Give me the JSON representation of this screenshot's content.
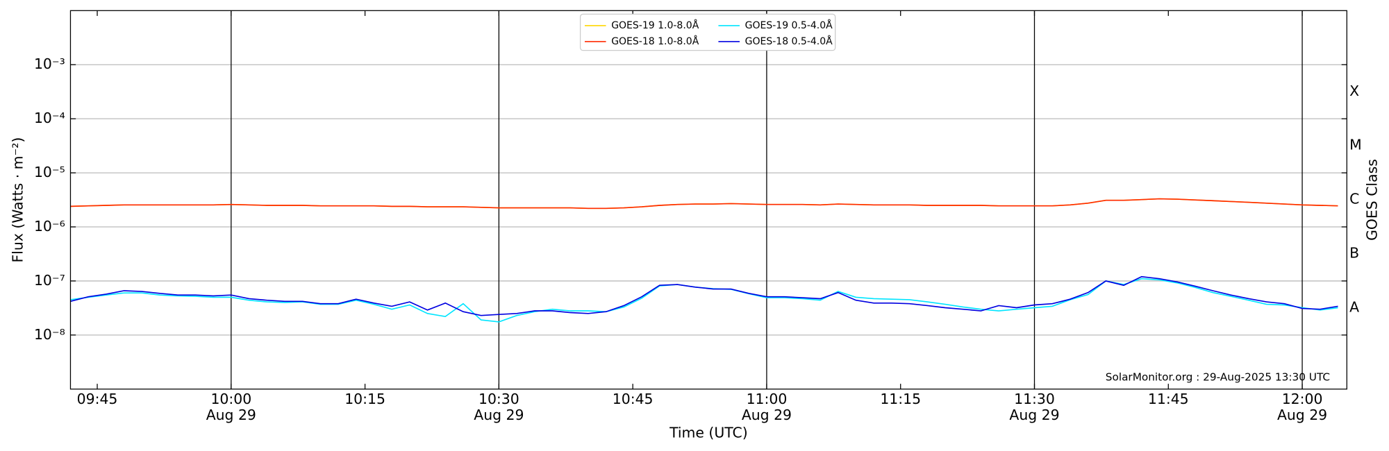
{
  "chart_data": {
    "type": "line",
    "xlabel": "Time (UTC)",
    "ylabel": "Flux (Watts · m⁻²)",
    "y2label": "GOES Class",
    "annotation": "SolarMonitor.org : 29-Aug-2025 13:30 UTC",
    "log_y": true,
    "grid": true,
    "legend": "upper center",
    "xlim": [
      "09:42",
      "12:05"
    ],
    "ylim": [
      1e-09,
      0.01
    ],
    "xticks": [
      {
        "value": "09:45",
        "label": "09:45"
      },
      {
        "value": "10:00",
        "label": "10:00",
        "date": "Aug 29"
      },
      {
        "value": "10:15",
        "label": "10:15"
      },
      {
        "value": "10:30",
        "label": "10:30",
        "date": "Aug 29"
      },
      {
        "value": "10:45",
        "label": "10:45"
      },
      {
        "value": "11:00",
        "label": "11:00",
        "date": "Aug 29"
      },
      {
        "value": "11:15",
        "label": "11:15"
      },
      {
        "value": "11:30",
        "label": "11:30",
        "date": "Aug 29"
      },
      {
        "value": "11:45",
        "label": "11:45"
      },
      {
        "value": "12:00",
        "label": "12:00",
        "date": "Aug 29"
      }
    ],
    "yticks": [
      {
        "value": 1e-08,
        "label": "10⁻⁸"
      },
      {
        "value": 1e-07,
        "label": "10⁻⁷"
      },
      {
        "value": 1e-06,
        "label": "10⁻⁶"
      },
      {
        "value": 1e-05,
        "label": "10⁻⁵"
      },
      {
        "value": 0.0001,
        "label": "10⁻⁴"
      },
      {
        "value": 0.001,
        "label": "10⁻³"
      }
    ],
    "y2ticks": [
      {
        "value": 3.2e-08,
        "label": "A"
      },
      {
        "value": 3.2e-07,
        "label": "B"
      },
      {
        "value": 3.2e-06,
        "label": "C"
      },
      {
        "value": 3.2e-05,
        "label": "M"
      },
      {
        "value": 0.00032,
        "label": "X"
      }
    ],
    "x": [
      "09:42",
      "09:44",
      "09:46",
      "09:48",
      "09:50",
      "09:52",
      "09:54",
      "09:56",
      "09:58",
      "10:00",
      "10:02",
      "10:04",
      "10:06",
      "10:08",
      "10:10",
      "10:12",
      "10:14",
      "10:16",
      "10:18",
      "10:20",
      "10:22",
      "10:24",
      "10:26",
      "10:28",
      "10:30",
      "10:32",
      "10:34",
      "10:36",
      "10:38",
      "10:40",
      "10:42",
      "10:44",
      "10:46",
      "10:48",
      "10:50",
      "10:52",
      "10:54",
      "10:56",
      "10:58",
      "11:00",
      "11:02",
      "11:04",
      "11:06",
      "11:08",
      "11:10",
      "11:12",
      "11:14",
      "11:16",
      "11:18",
      "11:20",
      "11:22",
      "11:24",
      "11:26",
      "11:28",
      "11:30",
      "11:32",
      "11:34",
      "11:36",
      "11:38",
      "11:40",
      "11:42",
      "11:44",
      "11:46",
      "11:48",
      "11:50",
      "11:52",
      "11:54",
      "11:56",
      "11:58",
      "12:00",
      "12:02",
      "12:04"
    ],
    "series": [
      {
        "name": "GOES-19 1.0-8.0Å",
        "color": "#ffd700",
        "values": [
          2.4e-06,
          2.45e-06,
          2.5e-06,
          2.55e-06,
          2.55e-06,
          2.55e-06,
          2.55e-06,
          2.55e-06,
          2.55e-06,
          2.6e-06,
          2.55e-06,
          2.5e-06,
          2.5e-06,
          2.5e-06,
          2.45e-06,
          2.45e-06,
          2.45e-06,
          2.45e-06,
          2.4e-06,
          2.4e-06,
          2.35e-06,
          2.35e-06,
          2.35e-06,
          2.3e-06,
          2.25e-06,
          2.25e-06,
          2.25e-06,
          2.25e-06,
          2.25e-06,
          2.2e-06,
          2.2e-06,
          2.25e-06,
          2.35e-06,
          2.5e-06,
          2.6e-06,
          2.65e-06,
          2.65e-06,
          2.7e-06,
          2.65e-06,
          2.6e-06,
          2.6e-06,
          2.6e-06,
          2.55e-06,
          2.65e-06,
          2.6e-06,
          2.55e-06,
          2.55e-06,
          2.55e-06,
          2.5e-06,
          2.5e-06,
          2.5e-06,
          2.5e-06,
          2.45e-06,
          2.45e-06,
          2.45e-06,
          2.45e-06,
          2.55e-06,
          2.75e-06,
          3.1e-06,
          3.1e-06,
          3.2e-06,
          3.3e-06,
          3.25e-06,
          3.15e-06,
          3.05e-06,
          2.95e-06,
          2.85e-06,
          2.75e-06,
          2.65e-06,
          2.55e-06,
          2.5e-06,
          2.45e-06
        ]
      },
      {
        "name": "GOES-18 1.0-8.0Å",
        "color": "#ff2a00",
        "values": [
          2.4e-06,
          2.45e-06,
          2.5e-06,
          2.55e-06,
          2.55e-06,
          2.55e-06,
          2.55e-06,
          2.55e-06,
          2.55e-06,
          2.6e-06,
          2.55e-06,
          2.5e-06,
          2.5e-06,
          2.5e-06,
          2.45e-06,
          2.45e-06,
          2.45e-06,
          2.45e-06,
          2.4e-06,
          2.4e-06,
          2.35e-06,
          2.35e-06,
          2.35e-06,
          2.3e-06,
          2.25e-06,
          2.25e-06,
          2.25e-06,
          2.25e-06,
          2.25e-06,
          2.2e-06,
          2.2e-06,
          2.25e-06,
          2.35e-06,
          2.5e-06,
          2.6e-06,
          2.65e-06,
          2.65e-06,
          2.7e-06,
          2.65e-06,
          2.6e-06,
          2.6e-06,
          2.6e-06,
          2.55e-06,
          2.65e-06,
          2.6e-06,
          2.55e-06,
          2.55e-06,
          2.55e-06,
          2.5e-06,
          2.5e-06,
          2.5e-06,
          2.5e-06,
          2.45e-06,
          2.45e-06,
          2.45e-06,
          2.45e-06,
          2.55e-06,
          2.75e-06,
          3.1e-06,
          3.1e-06,
          3.2e-06,
          3.3e-06,
          3.25e-06,
          3.15e-06,
          3.05e-06,
          2.95e-06,
          2.85e-06,
          2.75e-06,
          2.65e-06,
          2.55e-06,
          2.5e-06,
          2.45e-06
        ]
      },
      {
        "name": "GOES-19 0.5-4.0Å",
        "color": "#00e5ff",
        "values": [
          4.5e-08,
          5e-08,
          5.5e-08,
          6e-08,
          6e-08,
          5.5e-08,
          5.3e-08,
          5.2e-08,
          5e-08,
          5e-08,
          4.4e-08,
          4.1e-08,
          4e-08,
          4.1e-08,
          3.7e-08,
          3.7e-08,
          4.4e-08,
          3.7e-08,
          3e-08,
          3.6e-08,
          2.5e-08,
          2.2e-08,
          3.8e-08,
          1.9e-08,
          1.75e-08,
          2.3e-08,
          2.7e-08,
          3e-08,
          2.8e-08,
          2.8e-08,
          2.7e-08,
          3.3e-08,
          4.8e-08,
          8.1e-08,
          8.6e-08,
          7.7e-08,
          7.2e-08,
          7e-08,
          5.8e-08,
          4.9e-08,
          4.9e-08,
          4.7e-08,
          4.4e-08,
          6.4e-08,
          5e-08,
          4.7e-08,
          4.6e-08,
          4.5e-08,
          4.1e-08,
          3.7e-08,
          3.3e-08,
          3e-08,
          2.8e-08,
          3e-08,
          3.2e-08,
          3.4e-08,
          4.5e-08,
          5.6e-08,
          1e-07,
          8.6e-08,
          1.1e-07,
          1.05e-07,
          9.2e-08,
          7.6e-08,
          6.1e-08,
          5.2e-08,
          4.4e-08,
          3.7e-08,
          3.6e-08,
          3.2e-08,
          2.9e-08,
          3.2e-08
        ]
      },
      {
        "name": "GOES-18 0.5-4.0Å",
        "color": "#0000e0",
        "values": [
          4.2e-08,
          5.1e-08,
          5.7e-08,
          6.6e-08,
          6.4e-08,
          5.9e-08,
          5.5e-08,
          5.5e-08,
          5.3e-08,
          5.5e-08,
          4.7e-08,
          4.4e-08,
          4.2e-08,
          4.2e-08,
          3.8e-08,
          3.8e-08,
          4.6e-08,
          3.9e-08,
          3.4e-08,
          4.1e-08,
          2.9e-08,
          3.9e-08,
          2.7e-08,
          2.3e-08,
          2.4e-08,
          2.5e-08,
          2.8e-08,
          2.8e-08,
          2.6e-08,
          2.5e-08,
          2.7e-08,
          3.5e-08,
          5.1e-08,
          8.3e-08,
          8.6e-08,
          7.7e-08,
          7.1e-08,
          7.1e-08,
          5.9e-08,
          5.1e-08,
          5.1e-08,
          4.9e-08,
          4.7e-08,
          6.1e-08,
          4.4e-08,
          3.9e-08,
          3.9e-08,
          3.8e-08,
          3.5e-08,
          3.2e-08,
          3e-08,
          2.8e-08,
          3.5e-08,
          3.2e-08,
          3.6e-08,
          3.8e-08,
          4.6e-08,
          6.1e-08,
          1e-07,
          8.3e-08,
          1.2e-07,
          1.1e-07,
          9.6e-08,
          8e-08,
          6.6e-08,
          5.5e-08,
          4.7e-08,
          4.1e-08,
          3.8e-08,
          3.1e-08,
          3e-08,
          3.4e-08
        ]
      }
    ]
  }
}
